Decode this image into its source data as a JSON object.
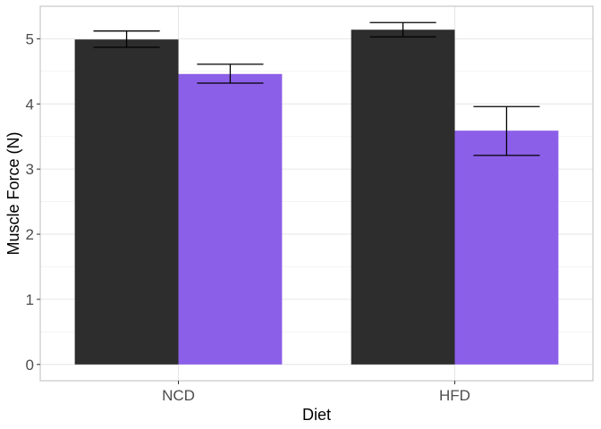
{
  "chart_data": {
    "type": "bar",
    "xlabel": "Diet",
    "ylabel": "Muscle Force (N)",
    "categories": [
      "NCD",
      "HFD"
    ],
    "ylim": [
      -0.25,
      5.5
    ],
    "yticks": [
      0,
      1,
      2,
      3,
      4,
      5
    ],
    "grid": true,
    "series": [
      {
        "color": "#2d2d2d",
        "values": [
          4.99,
          5.14
        ],
        "error_low": [
          4.87,
          5.03
        ],
        "error_high": [
          5.12,
          5.25
        ]
      },
      {
        "color": "#8b5fe8",
        "values": [
          4.46,
          3.59
        ],
        "error_low": [
          4.32,
          3.21
        ],
        "error_high": [
          4.61,
          3.96
        ]
      }
    ]
  }
}
